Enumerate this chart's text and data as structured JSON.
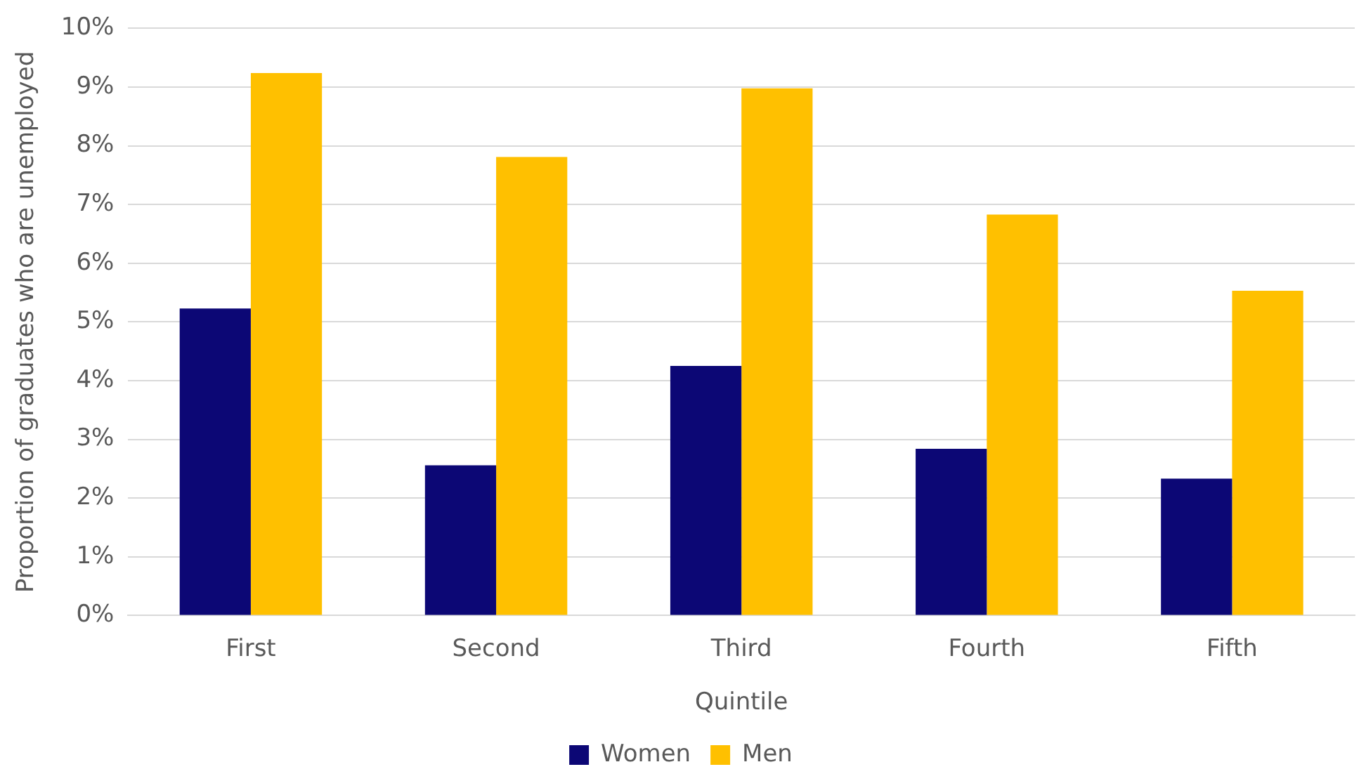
{
  "chart_data": {
    "type": "bar",
    "xlabel": "Quintile",
    "ylabel": "Proportion of graduates who are unemployed",
    "categories": [
      "First",
      "Second",
      "Third",
      "Fourth",
      "Fifth"
    ],
    "series": [
      {
        "name": "Women",
        "color": "#0c0775",
        "values": [
          5.23,
          2.56,
          4.25,
          2.84,
          2.33
        ]
      },
      {
        "name": "Men",
        "color": "#ffc000",
        "values": [
          9.24,
          7.81,
          8.98,
          6.83,
          5.53
        ]
      }
    ],
    "ylim": [
      0,
      10
    ],
    "yticks": [
      {
        "value": 0,
        "label": "0%"
      },
      {
        "value": 1,
        "label": "1%"
      },
      {
        "value": 2,
        "label": "2%"
      },
      {
        "value": 3,
        "label": "3%"
      },
      {
        "value": 4,
        "label": "4%"
      },
      {
        "value": 5,
        "label": "5%"
      },
      {
        "value": 6,
        "label": "6%"
      },
      {
        "value": 7,
        "label": "7%"
      },
      {
        "value": 8,
        "label": "8%"
      },
      {
        "value": 9,
        "label": "9%"
      },
      {
        "value": 10,
        "label": "10%"
      }
    ],
    "grid": "y",
    "legend": "bottom"
  }
}
